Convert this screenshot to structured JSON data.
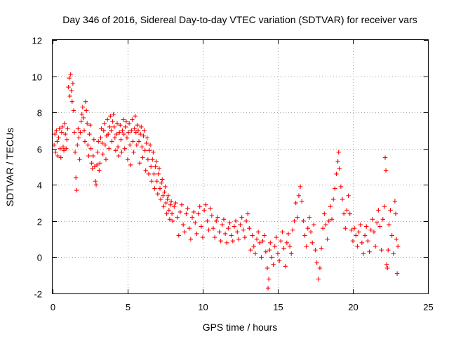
{
  "chart_data": {
    "type": "scatter",
    "title": "Day 346 of 2016, Sidereal Day-to-day VTEC variation (SDTVAR) for receiver vars",
    "xlabel": "GPS time / hours",
    "ylabel": "SDTVAR / TECUs",
    "xlim": [
      0,
      25
    ],
    "ylim": [
      -2,
      12
    ],
    "xticks": [
      0,
      5,
      10,
      15,
      20,
      25
    ],
    "yticks": [
      -2,
      0,
      2,
      4,
      6,
      8,
      10,
      12
    ],
    "grid": true,
    "marker": "+",
    "color": "#ff0000",
    "series": [
      {
        "name": "SDTVAR",
        "points": [
          [
            0.1,
            6.2
          ],
          [
            0.15,
            6.8
          ],
          [
            0.2,
            5.8
          ],
          [
            0.25,
            7.0
          ],
          [
            0.3,
            6.4
          ],
          [
            0.35,
            5.6
          ],
          [
            0.4,
            6.6
          ],
          [
            0.45,
            7.1
          ],
          [
            0.5,
            6.0
          ],
          [
            0.55,
            5.5
          ],
          [
            0.6,
            6.9
          ],
          [
            0.65,
            7.2
          ],
          [
            0.7,
            6.1
          ],
          [
            0.75,
            5.9
          ],
          [
            0.8,
            7.4
          ],
          [
            0.85,
            6.8
          ],
          [
            0.9,
            6.0
          ],
          [
            0.95,
            6.5
          ],
          [
            1.0,
            7.1
          ],
          [
            1.05,
            9.4
          ],
          [
            1.1,
            9.9
          ],
          [
            1.15,
            8.9
          ],
          [
            1.2,
            10.1
          ],
          [
            1.25,
            9.2
          ],
          [
            1.3,
            8.6
          ],
          [
            1.35,
            9.6
          ],
          [
            1.4,
            8.1
          ],
          [
            1.45,
            6.9
          ],
          [
            1.5,
            5.8
          ],
          [
            1.55,
            4.4
          ],
          [
            1.6,
            3.7
          ],
          [
            1.65,
            6.2
          ],
          [
            1.7,
            7.1
          ],
          [
            1.75,
            6.6
          ],
          [
            1.8,
            5.4
          ],
          [
            1.85,
            6.9
          ],
          [
            1.9,
            7.5
          ],
          [
            1.95,
            7.9
          ],
          [
            2.0,
            8.3
          ],
          [
            2.05,
            7.7
          ],
          [
            2.1,
            7.0
          ],
          [
            2.15,
            6.4
          ],
          [
            2.2,
            8.6
          ],
          [
            2.25,
            8.1
          ],
          [
            2.3,
            7.4
          ],
          [
            2.35,
            6.2
          ],
          [
            2.4,
            5.6
          ],
          [
            2.45,
            6.8
          ],
          [
            2.5,
            7.3
          ],
          [
            2.55,
            6.0
          ],
          [
            2.6,
            5.2
          ],
          [
            2.65,
            4.9
          ],
          [
            2.7,
            5.6
          ],
          [
            2.75,
            6.5
          ],
          [
            2.8,
            5.0
          ],
          [
            2.85,
            4.2
          ],
          [
            2.9,
            4.0
          ],
          [
            2.95,
            5.1
          ],
          [
            3.0,
            5.8
          ],
          [
            3.05,
            6.4
          ],
          [
            3.1,
            4.8
          ],
          [
            3.15,
            5.2
          ],
          [
            3.2,
            6.6
          ],
          [
            3.25,
            7.1
          ],
          [
            3.3,
            6.3
          ],
          [
            3.35,
            5.7
          ],
          [
            3.4,
            7.0
          ],
          [
            3.45,
            7.4
          ],
          [
            3.5,
            6.2
          ],
          [
            3.55,
            5.4
          ],
          [
            3.6,
            6.7
          ],
          [
            3.65,
            7.6
          ],
          [
            3.7,
            6.8
          ],
          [
            3.75,
            6.0
          ],
          [
            3.8,
            7.2
          ],
          [
            3.85,
            7.8
          ],
          [
            3.9,
            7.0
          ],
          [
            3.95,
            6.4
          ],
          [
            4.0,
            7.5
          ],
          [
            4.05,
            7.9
          ],
          [
            4.1,
            7.2
          ],
          [
            4.15,
            6.6
          ],
          [
            4.2,
            5.9
          ],
          [
            4.25,
            6.8
          ],
          [
            4.3,
            7.4
          ],
          [
            4.35,
            6.1
          ],
          [
            4.4,
            5.6
          ],
          [
            4.45,
            6.9
          ],
          [
            4.5,
            7.3
          ],
          [
            4.55,
            6.5
          ],
          [
            4.6,
            5.8
          ],
          [
            4.65,
            7.0
          ],
          [
            4.7,
            7.6
          ],
          [
            4.75,
            6.8
          ],
          [
            4.8,
            6.0
          ],
          [
            4.85,
            7.2
          ],
          [
            4.9,
            7.5
          ],
          [
            4.95,
            6.6
          ],
          [
            5.0,
            5.4
          ],
          [
            5.05,
            6.9
          ],
          [
            5.1,
            7.4
          ],
          [
            5.15,
            6.2
          ],
          [
            5.2,
            5.1
          ],
          [
            5.25,
            7.0
          ],
          [
            5.3,
            7.6
          ],
          [
            5.35,
            6.4
          ],
          [
            5.4,
            5.8
          ],
          [
            5.45,
            7.1
          ],
          [
            5.5,
            7.8
          ],
          [
            5.55,
            6.9
          ],
          [
            5.6,
            6.2
          ],
          [
            5.65,
            7.3
          ],
          [
            5.7,
            7.0
          ],
          [
            5.75,
            6.4
          ],
          [
            5.8,
            5.2
          ],
          [
            5.85,
            6.8
          ],
          [
            5.9,
            7.2
          ],
          [
            5.95,
            6.1
          ],
          [
            6.0,
            5.5
          ],
          [
            6.05,
            6.7
          ],
          [
            6.1,
            7.0
          ],
          [
            6.15,
            5.9
          ],
          [
            6.2,
            4.8
          ],
          [
            6.25,
            6.3
          ],
          [
            6.3,
            6.6
          ],
          [
            6.35,
            5.4
          ],
          [
            6.4,
            4.6
          ],
          [
            6.45,
            5.9
          ],
          [
            6.5,
            6.2
          ],
          [
            6.55,
            5.0
          ],
          [
            6.6,
            4.2
          ],
          [
            6.65,
            5.4
          ],
          [
            6.7,
            5.8
          ],
          [
            6.75,
            4.6
          ],
          [
            6.8,
            3.8
          ],
          [
            6.85,
            5.0
          ],
          [
            6.9,
            5.3
          ],
          [
            6.95,
            4.2
          ],
          [
            7.0,
            3.5
          ],
          [
            7.05,
            4.6
          ],
          [
            7.1,
            4.9
          ],
          [
            7.15,
            3.8
          ],
          [
            7.2,
            3.2
          ],
          [
            7.25,
            4.1
          ],
          [
            7.3,
            4.3
          ],
          [
            7.35,
            3.4
          ],
          [
            7.4,
            2.8
          ],
          [
            7.45,
            3.6
          ],
          [
            7.5,
            3.9
          ],
          [
            7.55,
            3.0
          ],
          [
            7.6,
            2.4
          ],
          [
            7.65,
            3.2
          ],
          [
            7.7,
            3.4
          ],
          [
            7.75,
            2.6
          ],
          [
            7.8,
            2.1
          ],
          [
            7.85,
            2.9
          ],
          [
            7.9,
            3.1
          ],
          [
            7.95,
            2.4
          ],
          [
            8.0,
            2.0
          ],
          [
            8.1,
            2.8
          ],
          [
            8.2,
            3.0
          ],
          [
            8.3,
            2.2
          ],
          [
            8.4,
            1.2
          ],
          [
            8.5,
            2.5
          ],
          [
            8.6,
            2.9
          ],
          [
            8.7,
            1.8
          ],
          [
            8.8,
            1.4
          ],
          [
            8.9,
            2.4
          ],
          [
            9.0,
            2.7
          ],
          [
            9.1,
            1.6
          ],
          [
            9.2,
            1.0
          ],
          [
            9.3,
            2.2
          ],
          [
            9.4,
            2.5
          ],
          [
            9.5,
            1.9
          ],
          [
            9.6,
            1.3
          ],
          [
            9.7,
            2.4
          ],
          [
            9.8,
            2.8
          ],
          [
            9.9,
            1.7
          ],
          [
            10.0,
            1.1
          ],
          [
            10.1,
            2.6
          ],
          [
            10.2,
            2.9
          ],
          [
            10.3,
            2.0
          ],
          [
            10.4,
            1.5
          ],
          [
            10.5,
            2.7
          ],
          [
            10.6,
            2.3
          ],
          [
            10.7,
            1.6
          ],
          [
            10.8,
            1.1
          ],
          [
            10.9,
            2.0
          ],
          [
            11.0,
            2.2
          ],
          [
            11.1,
            1.4
          ],
          [
            11.2,
            0.9
          ],
          [
            11.3,
            1.8
          ],
          [
            11.4,
            2.1
          ],
          [
            11.5,
            1.3
          ],
          [
            11.6,
            0.8
          ],
          [
            11.7,
            1.6
          ],
          [
            11.8,
            1.9
          ],
          [
            11.9,
            1.2
          ],
          [
            12.0,
            0.9
          ],
          [
            12.1,
            1.7
          ],
          [
            12.2,
            2.0
          ],
          [
            12.3,
            1.4
          ],
          [
            12.4,
            1.0
          ],
          [
            12.5,
            1.8
          ],
          [
            12.6,
            2.2
          ],
          [
            12.7,
            1.5
          ],
          [
            12.8,
            1.1
          ],
          [
            12.9,
            2.0
          ],
          [
            13.0,
            2.4
          ],
          [
            13.1,
            1.6
          ],
          [
            13.2,
            0.4
          ],
          [
            13.3,
            1.2
          ],
          [
            13.4,
            0.6
          ],
          [
            13.5,
            0.2
          ],
          [
            13.6,
            1.0
          ],
          [
            13.7,
            1.4
          ],
          [
            13.8,
            0.8
          ],
          [
            13.9,
            0.0
          ],
          [
            14.0,
            0.9
          ],
          [
            14.1,
            1.2
          ],
          [
            14.2,
            0.3
          ],
          [
            14.3,
            -0.6
          ],
          [
            14.35,
            -1.7
          ],
          [
            14.4,
            -1.2
          ],
          [
            14.45,
            0.4
          ],
          [
            14.5,
            0.8
          ],
          [
            14.6,
            0.0
          ],
          [
            14.7,
            -0.4
          ],
          [
            14.8,
            0.6
          ],
          [
            14.9,
            1.1
          ],
          [
            15.0,
            0.2
          ],
          [
            15.1,
            -0.2
          ],
          [
            15.2,
            0.9
          ],
          [
            15.3,
            1.4
          ],
          [
            15.4,
            0.5
          ],
          [
            15.5,
            -0.5
          ],
          [
            15.6,
            0.8
          ],
          [
            15.7,
            1.3
          ],
          [
            15.8,
            0.6
          ],
          [
            15.9,
            0.2
          ],
          [
            16.0,
            1.5
          ],
          [
            16.1,
            2.0
          ],
          [
            16.2,
            3.0
          ],
          [
            16.3,
            2.2
          ],
          [
            16.4,
            3.4
          ],
          [
            16.5,
            3.9
          ],
          [
            16.6,
            3.1
          ],
          [
            16.7,
            2.0
          ],
          [
            16.8,
            1.2
          ],
          [
            16.9,
            0.6
          ],
          [
            17.0,
            1.6
          ],
          [
            17.1,
            2.2
          ],
          [
            17.2,
            1.4
          ],
          [
            17.3,
            0.8
          ],
          [
            17.4,
            1.8
          ],
          [
            17.5,
            0.4
          ],
          [
            17.6,
            -0.3
          ],
          [
            17.7,
            -1.2
          ],
          [
            17.8,
            -0.6
          ],
          [
            17.9,
            0.5
          ],
          [
            18.0,
            1.6
          ],
          [
            18.1,
            2.4
          ],
          [
            18.2,
            1.8
          ],
          [
            18.3,
            1.0
          ],
          [
            18.4,
            2.0
          ],
          [
            18.5,
            2.8
          ],
          [
            18.6,
            2.1
          ],
          [
            18.7,
            3.2
          ],
          [
            18.8,
            3.8
          ],
          [
            18.9,
            4.6
          ],
          [
            19.0,
            5.3
          ],
          [
            19.05,
            5.8
          ],
          [
            19.1,
            4.9
          ],
          [
            19.2,
            3.9
          ],
          [
            19.3,
            3.2
          ],
          [
            19.4,
            2.4
          ],
          [
            19.5,
            1.6
          ],
          [
            19.6,
            2.6
          ],
          [
            19.7,
            3.4
          ],
          [
            19.8,
            2.4
          ],
          [
            19.9,
            1.5
          ],
          [
            20.0,
            0.9
          ],
          [
            20.1,
            1.6
          ],
          [
            20.2,
            1.2
          ],
          [
            20.3,
            0.6
          ],
          [
            20.4,
            1.4
          ],
          [
            20.5,
            1.8
          ],
          [
            20.6,
            0.8
          ],
          [
            20.7,
            0.2
          ],
          [
            20.8,
            1.2
          ],
          [
            20.9,
            1.7
          ],
          [
            21.0,
            0.9
          ],
          [
            21.1,
            0.3
          ],
          [
            21.2,
            1.5
          ],
          [
            21.3,
            2.1
          ],
          [
            21.4,
            1.4
          ],
          [
            21.5,
            0.6
          ],
          [
            21.6,
            1.9
          ],
          [
            21.7,
            2.6
          ],
          [
            21.8,
            1.7
          ],
          [
            21.9,
            0.4
          ],
          [
            22.0,
            2.1
          ],
          [
            22.1,
            2.8
          ],
          [
            22.15,
            5.5
          ],
          [
            22.2,
            4.8
          ],
          [
            22.25,
            -0.4
          ],
          [
            22.3,
            -0.6
          ],
          [
            22.35,
            0.4
          ],
          [
            22.4,
            1.8
          ],
          [
            22.5,
            2.6
          ],
          [
            22.6,
            1.2
          ],
          [
            22.7,
            0.2
          ],
          [
            22.8,
            3.1
          ],
          [
            22.85,
            2.4
          ],
          [
            22.9,
            1.0
          ],
          [
            22.95,
            -0.9
          ],
          [
            23.0,
            0.6
          ]
        ]
      }
    ]
  }
}
